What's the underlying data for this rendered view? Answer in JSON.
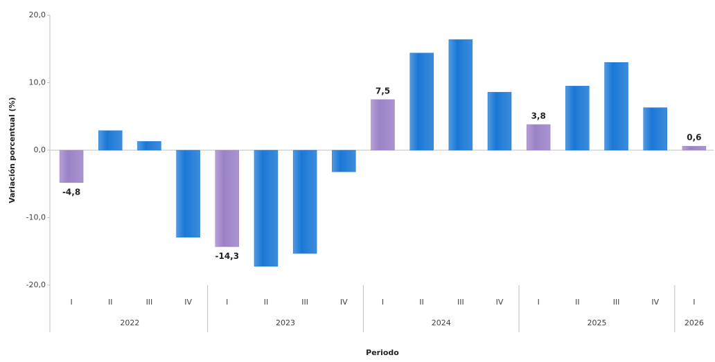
{
  "chart_data": {
    "type": "bar",
    "y_label": "Variación porcentual  (%)",
    "x_label": "Periodo",
    "groups": [
      {
        "name": "2022",
        "categories": [
          "I",
          "II",
          "III",
          "IV"
        ]
      },
      {
        "name": "2023",
        "categories": [
          "I",
          "II",
          "III",
          "IV"
        ]
      },
      {
        "name": "2024",
        "categories": [
          "I",
          "II",
          "III",
          "IV"
        ]
      },
      {
        "name": "2025",
        "categories": [
          "I",
          "II",
          "III",
          "IV"
        ]
      },
      {
        "name": "2026",
        "categories": [
          "I"
        ]
      }
    ],
    "values": [
      -4.8,
      2.9,
      1.3,
      -12.9,
      -14.3,
      -17.2,
      -15.3,
      -3.2,
      7.5,
      14.4,
      16.4,
      8.6,
      3.8,
      9.5,
      13.0,
      6.3,
      0.6
    ],
    "value_labels": [
      "-4,8",
      null,
      null,
      null,
      "-14,3",
      null,
      null,
      null,
      "7,5",
      null,
      null,
      null,
      "3,8",
      null,
      null,
      null,
      "0,6"
    ],
    "colors": [
      "#9b82c6",
      "#1a78d6",
      "#1a78d6",
      "#1a78d6",
      "#9b82c6",
      "#1a78d6",
      "#1a78d6",
      "#1a78d6",
      "#9b82c6",
      "#1a78d6",
      "#1a78d6",
      "#1a78d6",
      "#9b82c6",
      "#1a78d6",
      "#1a78d6",
      "#1a78d6",
      "#9b82c6"
    ],
    "ylim": [
      -20,
      20
    ],
    "yticks": [
      {
        "value": -20,
        "label": "-20,0"
      },
      {
        "value": -10,
        "label": "-10,0"
      },
      {
        "value": 0,
        "label": "0,0"
      },
      {
        "value": 10,
        "label": "10,0"
      },
      {
        "value": 20,
        "label": "20,0"
      }
    ]
  }
}
